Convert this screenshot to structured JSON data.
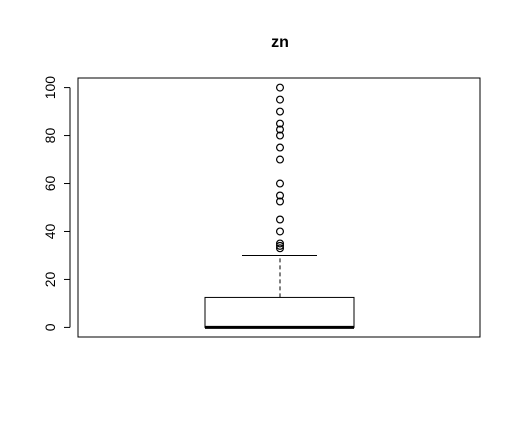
{
  "chart_data": {
    "type": "boxplot",
    "title": "zn",
    "xlabel": "",
    "ylabel": "",
    "ylim": [
      -4,
      104
    ],
    "yticks": [
      0,
      20,
      40,
      60,
      80,
      100
    ],
    "ytick_labels": [
      "0",
      "20",
      "40",
      "60",
      "80",
      "100"
    ],
    "grid": false,
    "box": {
      "min": 0,
      "q1": 0,
      "median": 0,
      "q3": 12.5,
      "upper_whisker": 30
    },
    "outliers": [
      33,
      34,
      35,
      40,
      45,
      52.5,
      55,
      60,
      70,
      75,
      80,
      82.5,
      85,
      90,
      95,
      100
    ]
  }
}
